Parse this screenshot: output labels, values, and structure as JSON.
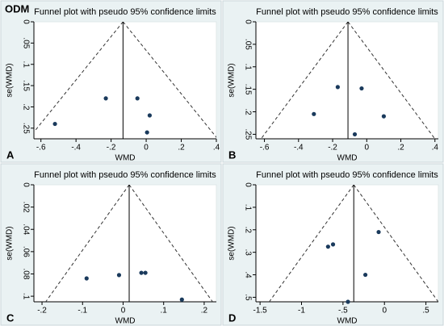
{
  "label": "ODM",
  "chart_data": [
    {
      "type": "funnel",
      "panel": "A",
      "title": "Funnel plot with pseudo 95% confidence limits",
      "x_label": "WMD",
      "y_label": "se(WMD)",
      "y_inverted": true,
      "x": [
        -0.52,
        -0.23,
        -0.05,
        0.02,
        0.005
      ],
      "values": [
        0.24,
        0.18,
        0.18,
        0.22,
        0.26
      ],
      "pooled_estimate": -0.132,
      "funnel_z": 1.96,
      "xlim": [
        -0.64,
        0.4
      ],
      "ylim": [
        0,
        0.275
      ],
      "xticks": [
        {
          "value": -0.6,
          "label": "-.6"
        },
        {
          "value": -0.4,
          "label": "-.4"
        },
        {
          "value": -0.2,
          "label": "-.2"
        },
        0,
        {
          "value": 0.2,
          "label": ".2"
        },
        {
          "value": 0.4,
          "label": ".4"
        }
      ],
      "yticks": [
        0,
        {
          "value": 0.05,
          "label": ".05"
        },
        {
          "value": 0.1,
          "label": ".1"
        },
        {
          "value": 0.15,
          "label": ".15"
        },
        {
          "value": 0.2,
          "label": ".2"
        },
        {
          "value": 0.25,
          "label": ".25"
        }
      ],
      "color": "#1a3a5c"
    },
    {
      "type": "funnel",
      "panel": "B",
      "title": "Funnel plot with pseudo 95% confidence limits",
      "x_label": "WMD",
      "y_label": "se(WMD)",
      "y_inverted": true,
      "x": [
        -0.17,
        -0.03,
        -0.31,
        0.1,
        -0.07
      ],
      "values": [
        0.145,
        0.148,
        0.205,
        0.21,
        0.25
      ],
      "pooled_estimate": -0.11,
      "funnel_z": 1.96,
      "xlim": [
        -0.65,
        0.42
      ],
      "ylim": [
        0,
        0.26
      ],
      "xticks": [
        {
          "value": -0.6,
          "label": "-.6"
        },
        {
          "value": -0.4,
          "label": "-.4"
        },
        {
          "value": -0.2,
          "label": "-.2"
        },
        0,
        {
          "value": 0.2,
          "label": ".2"
        },
        {
          "value": 0.4,
          "label": ".4"
        }
      ],
      "yticks": [
        0,
        {
          "value": 0.05,
          "label": ".05"
        },
        {
          "value": 0.1,
          "label": ".1"
        },
        {
          "value": 0.15,
          "label": ".15"
        },
        {
          "value": 0.2,
          "label": ".2"
        },
        {
          "value": 0.25,
          "label": ".25"
        }
      ],
      "color": "#1a3a5c"
    },
    {
      "type": "funnel",
      "panel": "C",
      "title": "Funnel plot with pseudo 95% confidence limits",
      "x_label": "WMD",
      "y_label": "se(WMD)",
      "y_inverted": true,
      "x": [
        -0.09,
        -0.01,
        0.045,
        0.055,
        0.145
      ],
      "values": [
        0.084,
        0.081,
        0.079,
        0.079,
        0.103
      ],
      "pooled_estimate": 0.015,
      "funnel_z": 1.96,
      "xlim": [
        -0.22,
        0.23
      ],
      "ylim": [
        0,
        0.105
      ],
      "xticks": [
        {
          "value": -0.2,
          "label": "-.2"
        },
        {
          "value": -0.1,
          "label": "-.1"
        },
        0,
        {
          "value": 0.1,
          "label": ".1"
        },
        {
          "value": 0.2,
          "label": ".2"
        }
      ],
      "yticks": [
        0,
        {
          "value": 0.02,
          "label": ".02"
        },
        {
          "value": 0.04,
          "label": ".04"
        },
        {
          "value": 0.06,
          "label": ".06"
        },
        {
          "value": 0.08,
          "label": ".08"
        },
        {
          "value": 0.1,
          "label": ".1"
        }
      ],
      "color": "#1a3a5c"
    },
    {
      "type": "funnel",
      "panel": "D",
      "title": "Funnel plot with pseudo 95% confidence limits",
      "x_label": "WMD",
      "y_label": "se(WMD)",
      "y_inverted": true,
      "x": [
        -0.68,
        -0.62,
        -0.07,
        -0.23,
        -0.44
      ],
      "values": [
        0.275,
        0.265,
        0.21,
        0.4,
        0.52
      ],
      "pooled_estimate": -0.37,
      "funnel_z": 1.96,
      "xlim": [
        -1.55,
        0.65
      ],
      "ylim": [
        0,
        0.52
      ],
      "xticks": [
        -1.5,
        -1,
        {
          "value": -0.5,
          "label": "-.5"
        },
        0,
        {
          "value": 0.5,
          "label": ".5"
        }
      ],
      "yticks": [
        0,
        {
          "value": 0.1,
          "label": ".1"
        },
        {
          "value": 0.2,
          "label": ".2"
        },
        {
          "value": 0.3,
          "label": ".3"
        },
        {
          "value": 0.4,
          "label": ".4"
        },
        {
          "value": 0.5,
          "label": ".5"
        }
      ],
      "color": "#1a3a5c"
    }
  ]
}
